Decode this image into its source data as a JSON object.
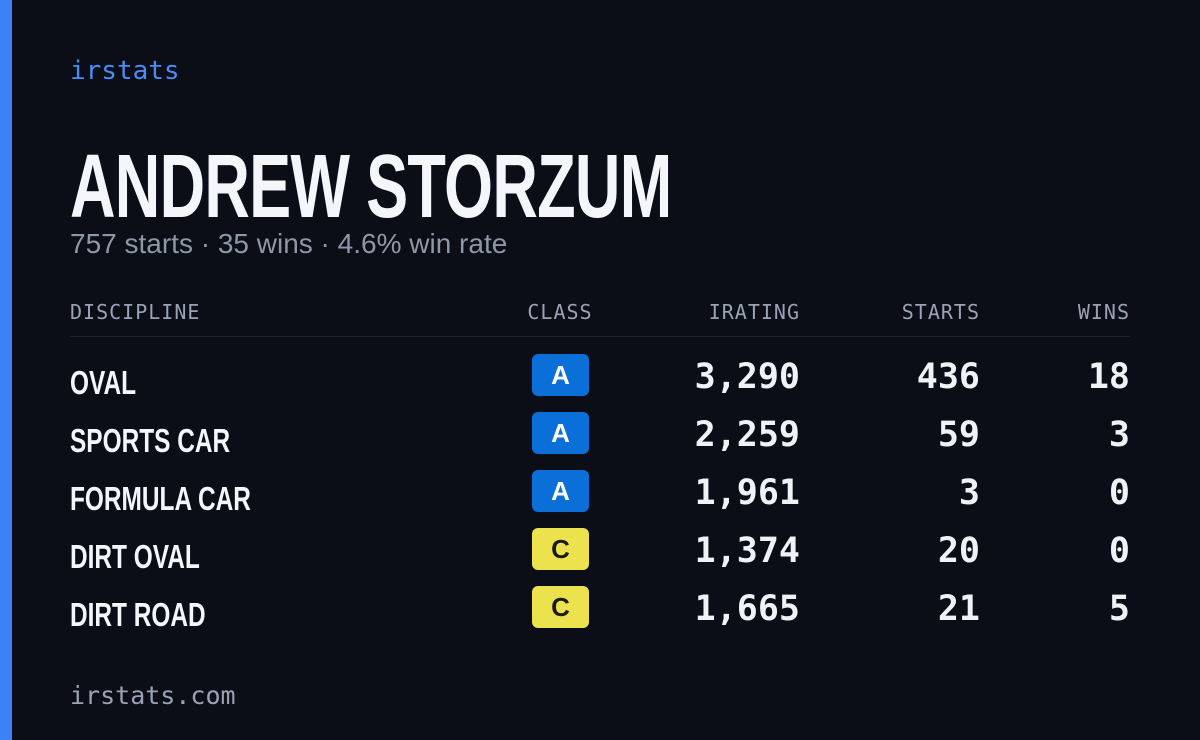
{
  "brand": "irstats",
  "driver": {
    "name": "ANDREW STORZUM",
    "summary": "757 starts · 35 wins · 4.6% win rate"
  },
  "table": {
    "header": [
      "DISCIPLINE",
      "CLASS",
      "IRATING",
      "STARTS",
      "WINS"
    ],
    "rows": [
      {
        "discipline": "OVAL",
        "class": "A",
        "class_color": "#0a6fd8",
        "class_text_color": "#ffffff",
        "irating": "3,290",
        "starts": 436,
        "wins": 18
      },
      {
        "discipline": "SPORTS CAR",
        "class": "A",
        "class_color": "#0a6fd8",
        "class_text_color": "#ffffff",
        "irating": "2,259",
        "starts": 59,
        "wins": 3
      },
      {
        "discipline": "FORMULA CAR",
        "class": "A",
        "class_color": "#0a6fd8",
        "class_text_color": "#ffffff",
        "irating": "1,961",
        "starts": 3,
        "wins": 0
      },
      {
        "discipline": "DIRT OVAL",
        "class": "C",
        "class_color": "#ebe24d",
        "class_text_color": "#1a1a1a",
        "irating": "1,374",
        "starts": 20,
        "wins": 0
      },
      {
        "discipline": "DIRT ROAD",
        "class": "C",
        "class_color": "#ebe24d",
        "class_text_color": "#1a1a1a",
        "irating": "1,665",
        "starts": 21,
        "wins": 5
      }
    ]
  },
  "footer": "irstats.com"
}
